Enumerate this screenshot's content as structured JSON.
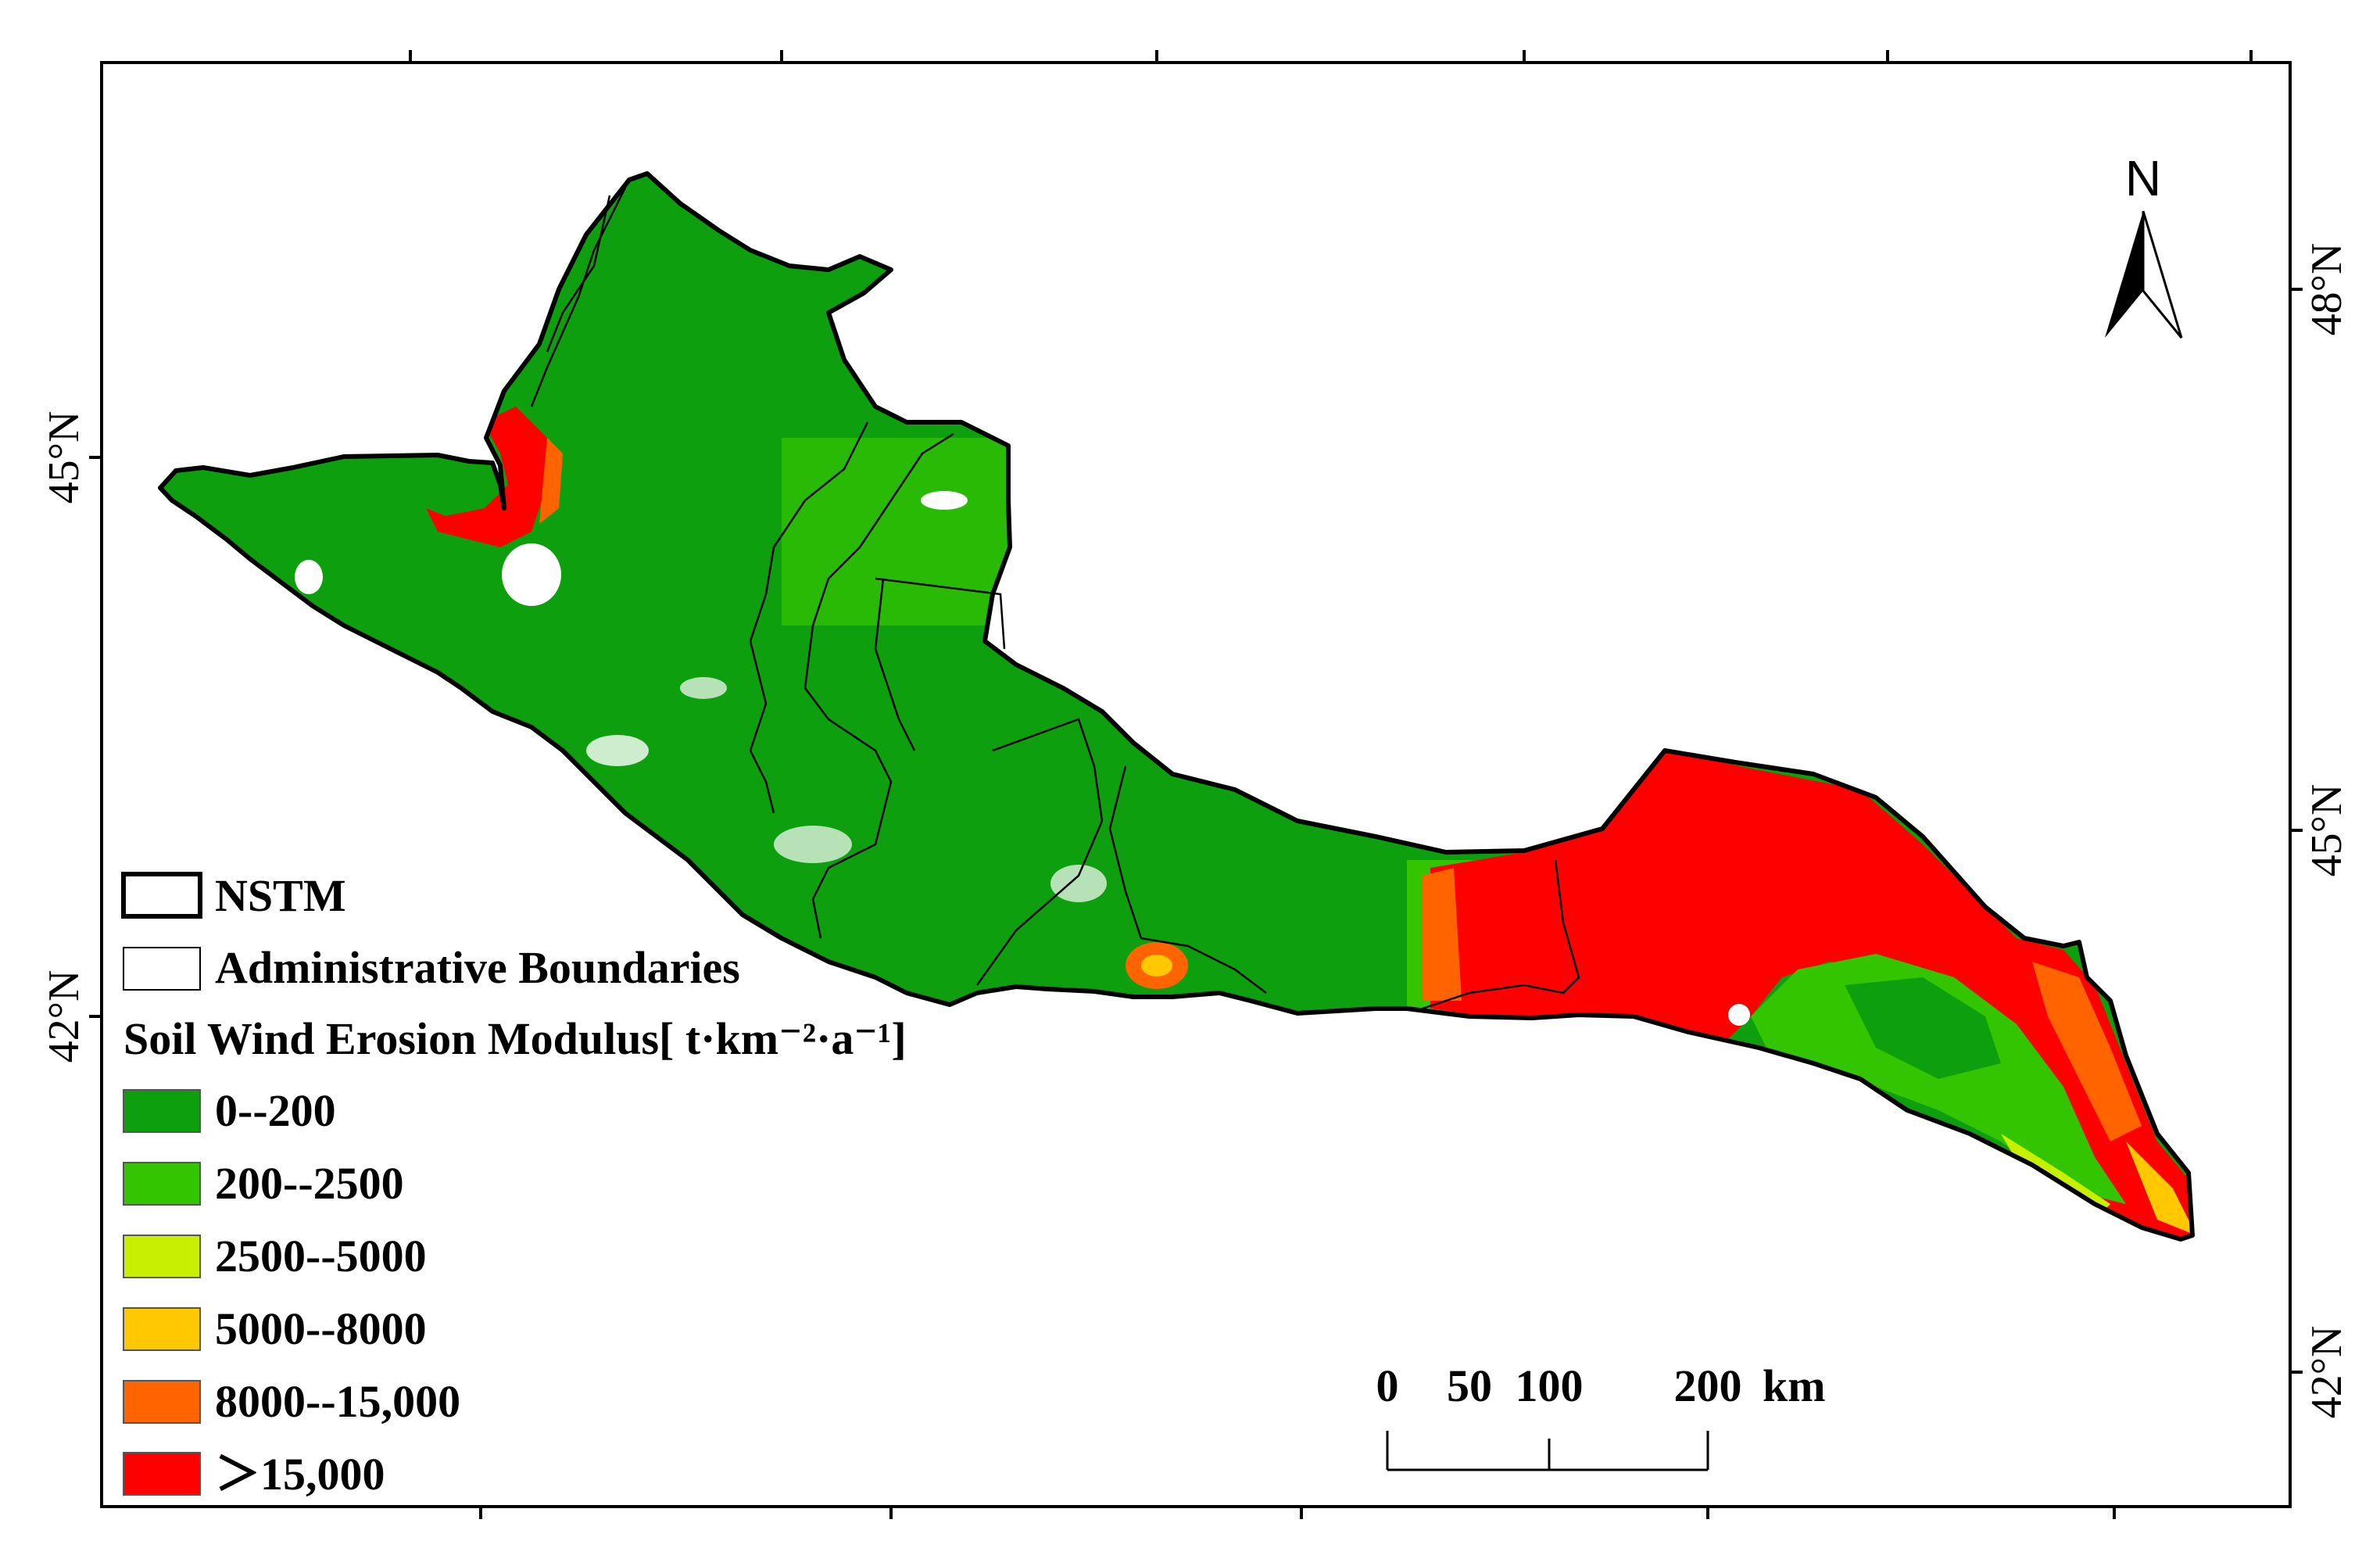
{
  "map": {
    "latitude_labels_left": [
      "45°N",
      "42°N"
    ],
    "latitude_labels_right": [
      "48°N",
      "45°N",
      "42°N"
    ],
    "north_arrow": {
      "label": "N",
      "icon": "north-arrow-icon"
    }
  },
  "legend": {
    "boundary_items": [
      {
        "label": "NSTM",
        "style": "thick-black-outline"
      },
      {
        "label": "Administrative Boundaries",
        "style": "thin-black-outline"
      }
    ],
    "title": "Soil Wind  Erosion Modulus[ t·km⁻²·a⁻¹]",
    "classes": [
      {
        "label": "0--200",
        "color": "#0e9f0e"
      },
      {
        "label": "200--2500",
        "color": "#33c600"
      },
      {
        "label": "2500--5000",
        "color": "#c8ee00"
      },
      {
        "label": "5000--8000",
        "color": "#ffc800"
      },
      {
        "label": "8000--15,000",
        "color": "#ff6400"
      },
      {
        "label": "＞15,000",
        "color": "#ff0000"
      }
    ]
  },
  "scale_bar": {
    "labels": [
      "0",
      "50",
      "100",
      "200",
      "km"
    ]
  }
}
